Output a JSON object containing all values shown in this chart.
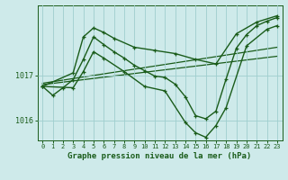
{
  "bg_color": "#ceeaea",
  "plot_bg_color": "#ceeaea",
  "grid_color": "#9fcece",
  "line_color": "#1a5c1a",
  "title": "Graphe pression niveau de la mer (hPa)",
  "xlim": [
    -0.5,
    23.5
  ],
  "ylim": [
    1015.55,
    1018.55
  ],
  "yticks": [
    1016,
    1017
  ],
  "xticks": [
    0,
    1,
    2,
    3,
    4,
    5,
    6,
    7,
    8,
    9,
    10,
    11,
    12,
    13,
    14,
    15,
    16,
    17,
    18,
    19,
    20,
    21,
    22,
    23
  ],
  "series_wavy": {
    "x": [
      0,
      1,
      2,
      3,
      4,
      5,
      6,
      7,
      8,
      9,
      10,
      11,
      12,
      13,
      14,
      15,
      16,
      17,
      18,
      19,
      20,
      21,
      22,
      23
    ],
    "y": [
      1016.75,
      1016.55,
      1016.72,
      1016.9,
      1017.35,
      1017.85,
      1017.68,
      1017.52,
      1017.38,
      1017.22,
      1017.1,
      1016.98,
      1016.95,
      1016.8,
      1016.52,
      1016.1,
      1016.03,
      1016.2,
      1016.92,
      1017.6,
      1017.9,
      1018.1,
      1018.2,
      1018.28
    ]
  },
  "series_upper": {
    "x": [
      0,
      3,
      4,
      5,
      6,
      7,
      9,
      11,
      13,
      15,
      17,
      19,
      21,
      23
    ],
    "y": [
      1016.75,
      1017.05,
      1017.85,
      1018.05,
      1017.95,
      1017.82,
      1017.62,
      1017.55,
      1017.48,
      1017.35,
      1017.25,
      1017.92,
      1018.18,
      1018.32
    ]
  },
  "series_lower": {
    "x": [
      0,
      3,
      4,
      5,
      6,
      8,
      10,
      12,
      14,
      15,
      16,
      17,
      18,
      20,
      22,
      23
    ],
    "y": [
      1016.75,
      1016.72,
      1017.08,
      1017.52,
      1017.38,
      1017.08,
      1016.75,
      1016.65,
      1015.95,
      1015.72,
      1015.62,
      1015.88,
      1016.28,
      1017.65,
      1018.02,
      1018.1
    ]
  },
  "trend1": {
    "x": [
      0,
      23
    ],
    "y": [
      1016.82,
      1017.62
    ]
  },
  "trend2": {
    "x": [
      0,
      23
    ],
    "y": [
      1016.79,
      1017.42
    ]
  }
}
